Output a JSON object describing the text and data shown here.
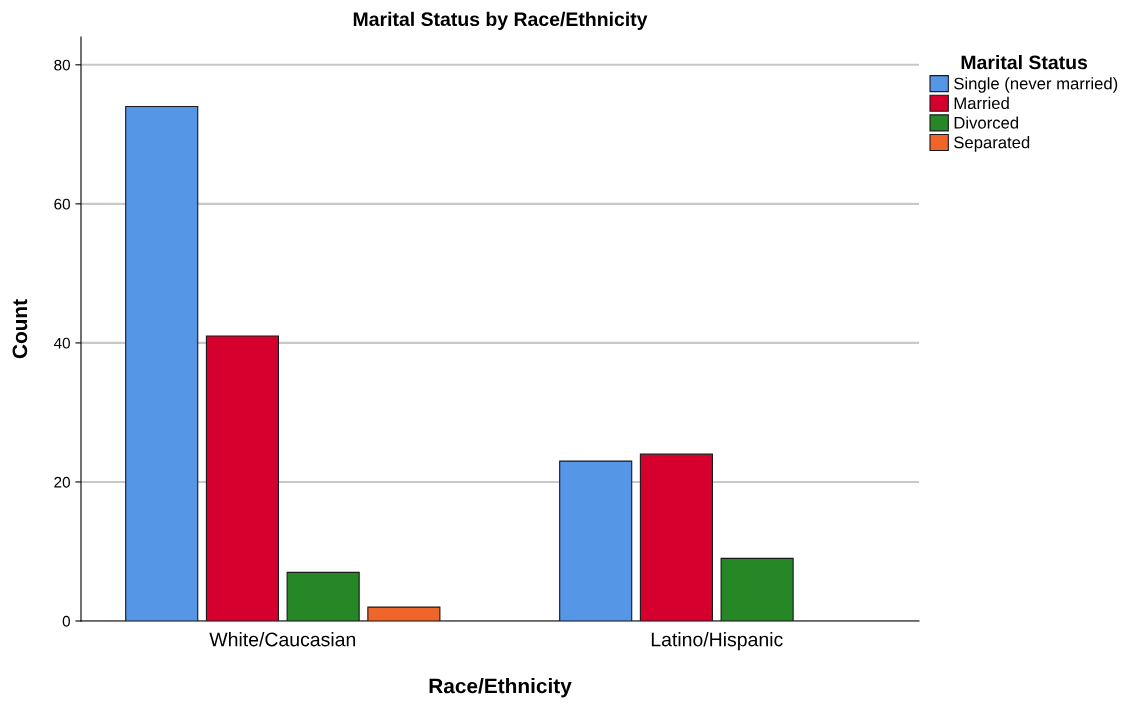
{
  "chart_data": {
    "type": "bar",
    "title": "Marital Status by Race/Ethnicity",
    "xlabel": "Race/Ethnicity",
    "ylabel": "Count",
    "legend_title": "Marital Status",
    "categories": [
      "White/Caucasian",
      "Latino/Hispanic"
    ],
    "series": [
      {
        "name": "Single (never married)",
        "color": "#5596e6",
        "values": [
          74,
          23
        ]
      },
      {
        "name": "Married",
        "color": "#d6002e",
        "values": [
          41,
          24
        ]
      },
      {
        "name": "Divorced",
        "color": "#268726",
        "values": [
          7,
          9
        ]
      },
      {
        "name": "Separated",
        "color": "#f0662a",
        "values": [
          2,
          null
        ]
      }
    ],
    "ylim": [
      0,
      84
    ],
    "yticks": [
      0,
      20,
      40,
      60,
      80
    ],
    "grid": "y",
    "legend": "top right"
  }
}
